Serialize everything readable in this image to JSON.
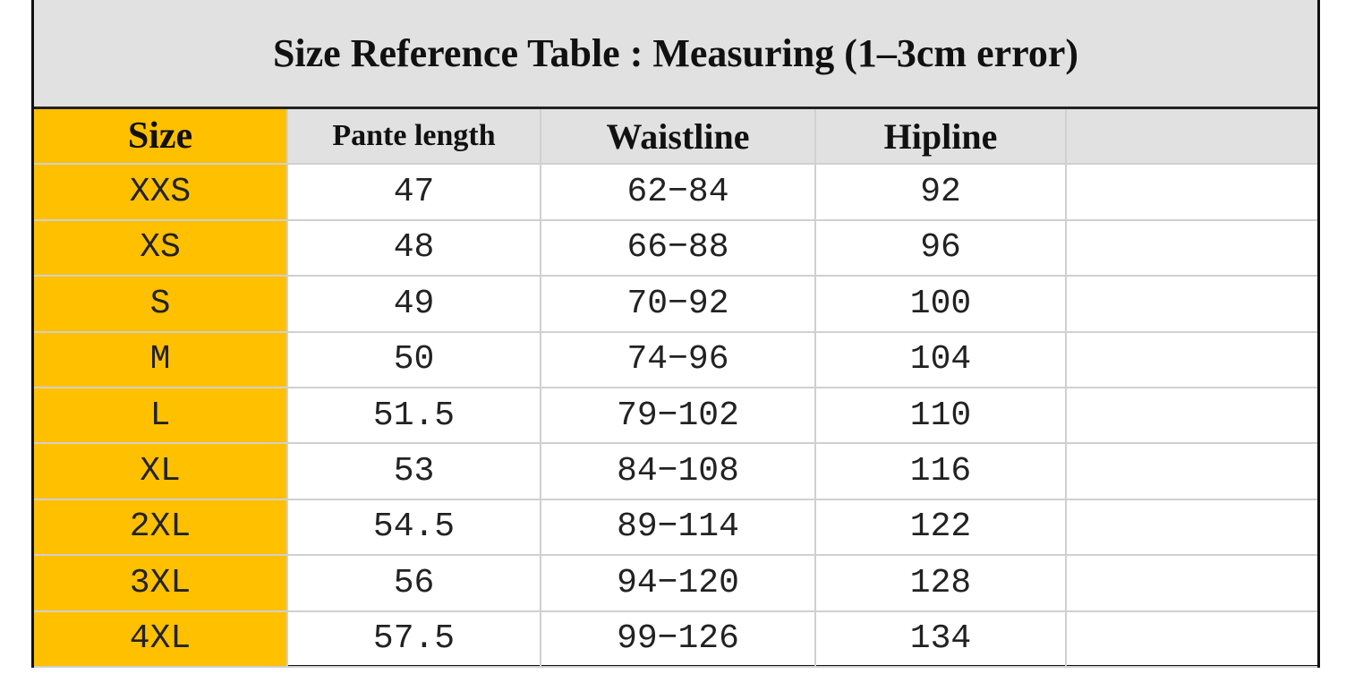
{
  "header": {
    "title": "Size Reference Table : Measuring (1–3cm error)"
  },
  "table": {
    "columns": [
      "Size",
      "Pante length",
      "Waistline",
      "Hipline"
    ],
    "rows": [
      [
        "XXS",
        "47",
        "62−84",
        "92"
      ],
      [
        "XS",
        "48",
        "66−88",
        "96"
      ],
      [
        "S",
        "49",
        "70−92",
        "100"
      ],
      [
        "M",
        "50",
        "74−96",
        "104"
      ],
      [
        "L",
        "51.5",
        "79−102",
        "110"
      ],
      [
        "XL",
        "53",
        "84−108",
        "116"
      ],
      [
        "2XL",
        "54.5",
        "89−114",
        "122"
      ],
      [
        "3XL",
        "56",
        "94−120",
        "128"
      ],
      [
        "4XL",
        "57.5",
        "99−126",
        "134"
      ]
    ]
  }
}
